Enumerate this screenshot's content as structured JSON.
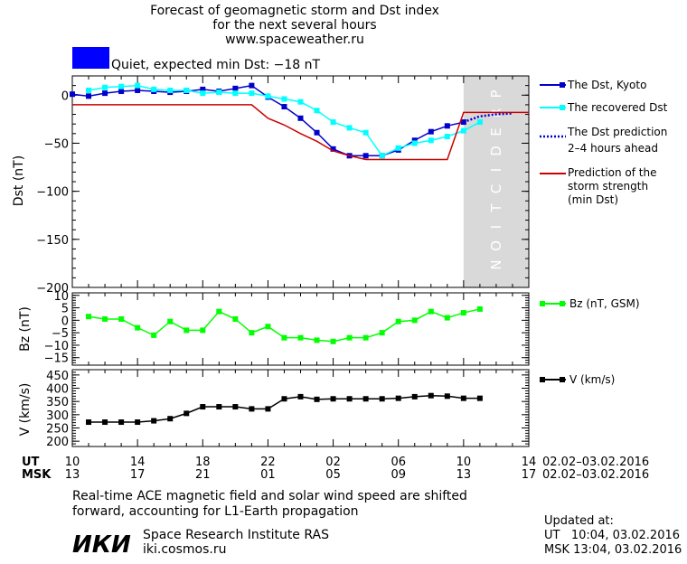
{
  "header": {
    "title_line1": "Forecast of geomagnetic storm and Dst index",
    "title_line2": "for the next several hours",
    "site": "www.spaceweather.ru",
    "status_text": "Quiet, expected min Dst: −18 nT",
    "status_color": "#0000ff"
  },
  "prediction_label": "PREDICTION",
  "colors": {
    "dst": "#0000cc",
    "recovered": "#00ffff",
    "strength": "#cc0000",
    "bz": "#00ff00",
    "v": "#000000",
    "prediction_band": "#d9d9d9"
  },
  "chart_data": [
    {
      "type": "line",
      "ylabel": "Dst (nT)",
      "ylim": [
        -200,
        20
      ],
      "yticks": [
        0,
        -50,
        -100,
        -150,
        -200
      ],
      "xlim": [
        10,
        38
      ],
      "prediction_start_hour": 34,
      "legend_position": "right",
      "series": [
        {
          "name": "The Dst, Kyoto",
          "color": "#0000cc",
          "x": [
            10,
            11,
            12,
            13,
            14,
            15,
            16,
            17,
            18,
            19,
            20,
            21,
            22,
            23,
            24,
            25,
            26,
            27,
            28,
            29,
            30,
            31,
            32,
            33,
            34
          ],
          "values": [
            1,
            -1,
            2,
            4,
            5,
            4,
            3,
            4,
            6,
            4,
            7,
            10,
            -2,
            -12,
            -24,
            -39,
            -56,
            -63,
            -63,
            -63,
            -57,
            -47,
            -38,
            -32,
            -28
          ]
        },
        {
          "name": "The recovered Dst",
          "color": "#00ffff",
          "x": [
            11,
            12,
            13,
            14,
            15,
            16,
            17,
            18,
            19,
            20,
            21,
            22,
            23,
            24,
            25,
            26,
            27,
            28,
            29,
            30,
            31,
            32,
            33,
            34,
            35
          ],
          "values": [
            5,
            8,
            9,
            10,
            6,
            5,
            5,
            2,
            3,
            2,
            2,
            -1,
            -4,
            -7,
            -16,
            -28,
            -34,
            -39,
            -63,
            -55,
            -50,
            -47,
            -43,
            -37,
            -28
          ]
        },
        {
          "name": "The Dst prediction",
          "name_line2": "2–4 hours ahead",
          "color": "#0000cc",
          "dotted": true,
          "x": [
            34,
            35,
            36,
            37
          ],
          "values": [
            -28,
            -22,
            -20,
            -19
          ]
        },
        {
          "name": "Prediction of the",
          "name_line2": "storm strength",
          "name_line3": "(min Dst)",
          "color": "#cc0000",
          "x": [
            10,
            11,
            12,
            13,
            14,
            15,
            16,
            17,
            18,
            19,
            20,
            21,
            22,
            23,
            24,
            25,
            26,
            27,
            28,
            29,
            30,
            31,
            32,
            33,
            34,
            35,
            36,
            37,
            38
          ],
          "values": [
            -10,
            -10,
            -10,
            -10,
            -10,
            -10,
            -10,
            -10,
            -10,
            -10,
            -10,
            -10,
            -24,
            -31,
            -40,
            -48,
            -58,
            -63,
            -67,
            -67,
            -67,
            -67,
            -67,
            -67,
            -18,
            -18,
            -18,
            -18,
            -18
          ]
        }
      ]
    },
    {
      "type": "line",
      "ylabel": "Bz (nT)",
      "ylim": [
        -18,
        11
      ],
      "yticks": [
        10,
        5,
        0,
        -5,
        -10,
        -15
      ],
      "xlim": [
        10,
        38
      ],
      "series": [
        {
          "name": "Bz (nT, GSM)",
          "color": "#00ff00",
          "x": [
            11,
            12,
            13,
            14,
            15,
            16,
            17,
            18,
            19,
            20,
            21,
            22,
            23,
            24,
            25,
            26,
            27,
            28,
            29,
            30,
            31,
            32,
            33,
            34,
            35
          ],
          "values": [
            1.5,
            0.5,
            0.5,
            -3,
            -6,
            -0.5,
            -4,
            -4,
            3.5,
            0.5,
            -5,
            -2.5,
            -7,
            -7,
            -8,
            -8.5,
            -7,
            -7,
            -5,
            -0.5,
            0,
            3.5,
            1,
            3,
            4.5
          ]
        }
      ]
    },
    {
      "type": "line",
      "ylabel": "V (km/s)",
      "ylim": [
        180,
        470
      ],
      "yticks": [
        450,
        400,
        350,
        300,
        250,
        200
      ],
      "xlim": [
        10,
        38
      ],
      "series": [
        {
          "name": "V (km/s)",
          "color": "#000000",
          "x": [
            11,
            12,
            13,
            14,
            15,
            16,
            17,
            18,
            19,
            20,
            21,
            22,
            23,
            24,
            25,
            26,
            27,
            28,
            29,
            30,
            31,
            32,
            33,
            34,
            35
          ],
          "values": [
            272,
            272,
            272,
            272,
            277,
            285,
            305,
            330,
            330,
            330,
            322,
            322,
            360,
            368,
            358,
            360,
            360,
            360,
            360,
            362,
            368,
            372,
            370,
            362,
            362
          ]
        }
      ]
    }
  ],
  "time_axis": {
    "ut_label": "UT",
    "msk_label": "MSK",
    "ut_ticks": [
      "10",
      "14",
      "18",
      "22",
      "02",
      "06",
      "10",
      "14"
    ],
    "msk_ticks": [
      "13",
      "17",
      "21",
      "01",
      "05",
      "09",
      "13",
      "17"
    ],
    "ut_date_range": "02.02–03.02.2016",
    "msk_date_range": "02.02–03.02.2016"
  },
  "footer": {
    "note_line1": "Real-time ACE magnetic field and solar wind speed are shifted",
    "note_line2": "forward, accounting for L1-Earth propagation",
    "logo": "ИКИ",
    "institute": "Space Research Institute RAS",
    "institute_site": "iki.cosmos.ru",
    "updated_label": "Updated at:",
    "updated_ut": "UT   10:04, 03.02.2016",
    "updated_msk": "MSK 13:04, 03.02.2016"
  }
}
